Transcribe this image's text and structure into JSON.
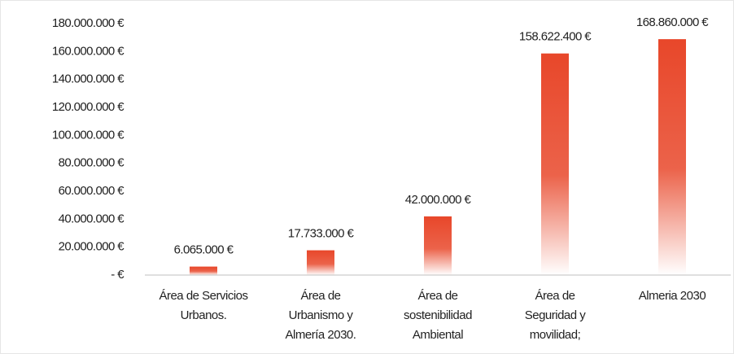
{
  "chart_data": {
    "type": "bar",
    "categories": [
      "Área de Servicios Urbanos.",
      "Área de Urbanismo y Almería 2030.",
      "Área de sostenibilidad Ambiental",
      "Área de Seguridad y movilidad;",
      "Almeria 2030"
    ],
    "values": [
      6065000,
      17733000,
      42000000,
      158622400,
      168860000
    ],
    "value_labels": [
      "6.065.000 €",
      "17.733.000 €",
      "42.000.000 €",
      "158.622.400 €",
      "168.860.000 €"
    ],
    "color": "#e8472a",
    "ylim": [
      0,
      180000000
    ],
    "yticks": [
      {
        "value": 0,
        "label": "-  €"
      },
      {
        "value": 20000000,
        "label": "20.000.000 €"
      },
      {
        "value": 40000000,
        "label": "40.000.000 €"
      },
      {
        "value": 60000000,
        "label": "60.000.000 €"
      },
      {
        "value": 80000000,
        "label": "80.000.000 €"
      },
      {
        "value": 100000000,
        "label": "100.000.000 €"
      },
      {
        "value": 120000000,
        "label": "120.000.000 €"
      },
      {
        "value": 140000000,
        "label": "140.000.000 €"
      },
      {
        "value": 160000000,
        "label": "160.000.000 €"
      },
      {
        "value": 180000000,
        "label": "180.000.000 €"
      }
    ],
    "grid": false
  }
}
